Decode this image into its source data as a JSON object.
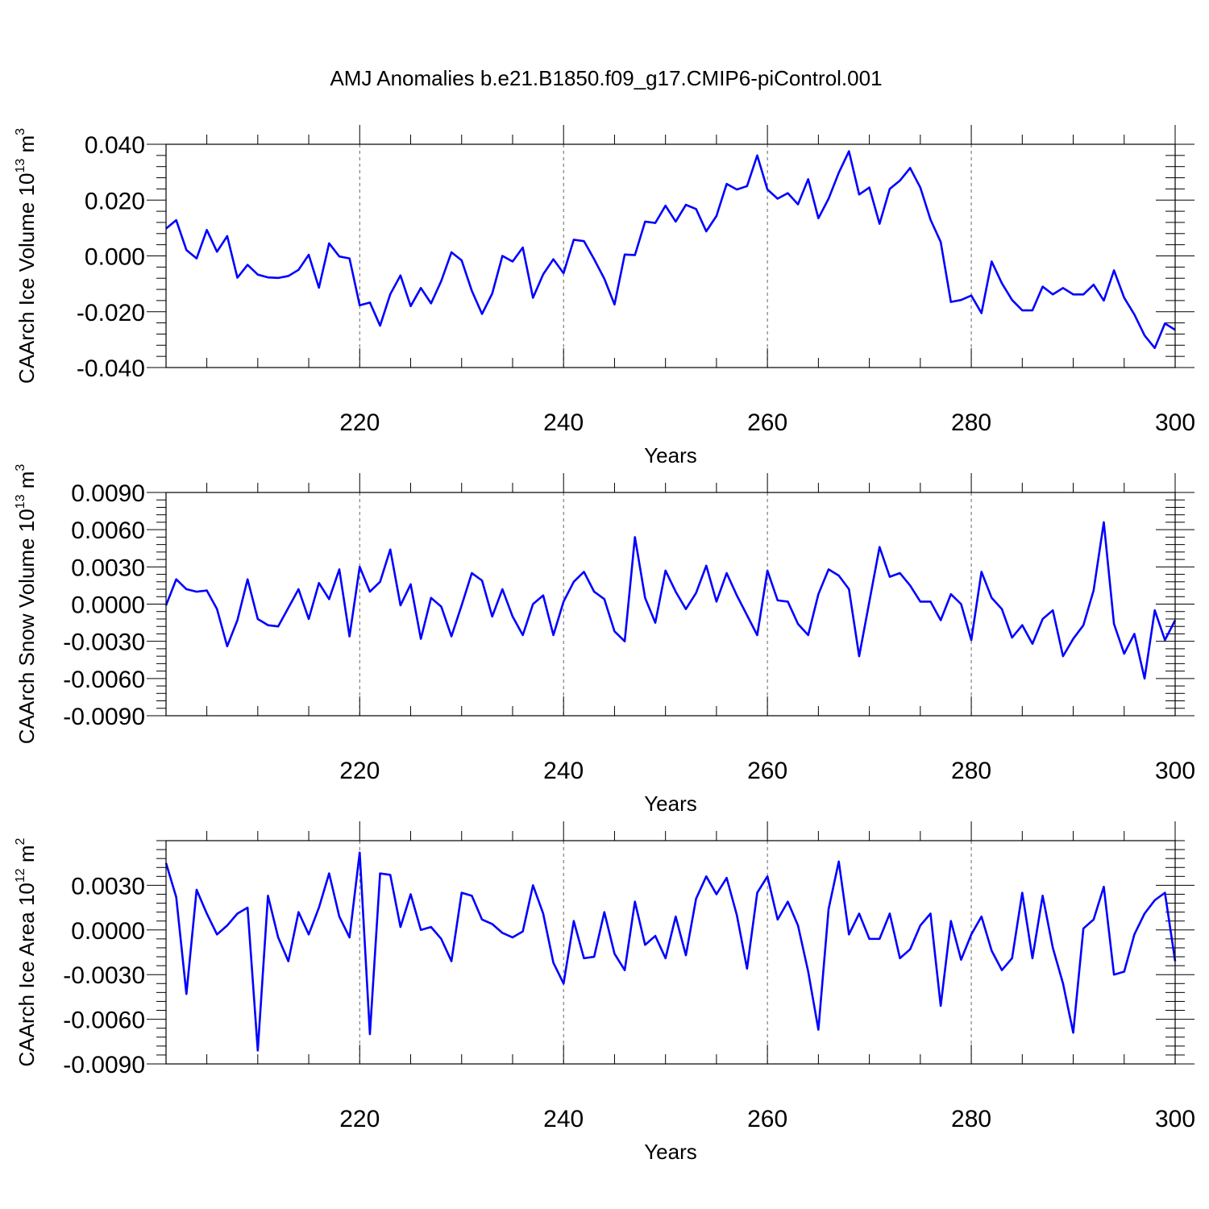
{
  "title": "AMJ Anomalies b.e21.B1850.f09_g17.CMIP6-piControl.001",
  "colors": {
    "series": "#0000ff",
    "frame": "#000000",
    "grid": "#666666"
  },
  "chart_data": [
    {
      "type": "line",
      "ylabel": {
        "text": "CAArch Ice Volume 10",
        "sup": "13",
        "unit": " m",
        "unit_sup": "3"
      },
      "xlabel": "Years",
      "xlim": [
        201,
        300
      ],
      "ylim": [
        -0.04,
        0.04
      ],
      "xticks": [
        220,
        240,
        260,
        280,
        300
      ],
      "xtick_labels": [
        "220",
        "240",
        "260",
        "280",
        "300"
      ],
      "yticks": [
        -0.04,
        -0.02,
        0.0,
        0.02,
        0.04
      ],
      "ytick_labels": [
        "-0.040",
        "-0.020",
        "0.000",
        "0.020",
        "0.040"
      ],
      "grid_x": [
        220,
        240,
        260,
        280
      ],
      "series": [
        {
          "x_start": 201,
          "values": [
            0.0098,
            0.0128,
            0.0021,
            -0.0009,
            0.0093,
            0.0015,
            0.0071,
            -0.0078,
            -0.0032,
            -0.0067,
            -0.0077,
            -0.0079,
            -0.0072,
            -0.005,
            0.0004,
            -0.0114,
            0.0045,
            -0.0002,
            -0.0009,
            -0.0177,
            -0.0167,
            -0.025,
            -0.0137,
            -0.007,
            -0.018,
            -0.0115,
            -0.017,
            -0.009,
            0.0013,
            -0.0016,
            -0.0125,
            -0.0208,
            -0.0135,
            0.0,
            -0.002,
            0.003,
            -0.015,
            -0.0066,
            -0.0012,
            -0.0062,
            0.0058,
            0.0053,
            -0.0012,
            -0.0082,
            -0.0174,
            0.0005,
            0.0003,
            0.0123,
            0.0118,
            0.018,
            0.0123,
            0.0183,
            0.0168,
            0.0088,
            0.0143,
            0.0258,
            0.0238,
            0.025,
            0.036,
            0.0238,
            0.0205,
            0.0225,
            0.0185,
            0.0275,
            0.0135,
            0.0205,
            0.0298,
            0.0375,
            0.022,
            0.0245,
            0.0115,
            0.024,
            0.027,
            0.0315,
            0.0245,
            0.013,
            0.005,
            -0.0165,
            -0.0158,
            -0.0142,
            -0.0205,
            -0.002,
            -0.0098,
            -0.0158,
            -0.0195,
            -0.0195,
            -0.011,
            -0.0138,
            -0.0115,
            -0.0138,
            -0.0138,
            -0.0103,
            -0.016,
            -0.0052,
            -0.015,
            -0.021,
            -0.0285,
            -0.033,
            -0.0242,
            -0.0265
          ]
        }
      ]
    },
    {
      "type": "line",
      "ylabel": {
        "text": "CAArch Snow Volume 10",
        "sup": "13",
        "unit": " m",
        "unit_sup": "3"
      },
      "xlabel": "Years",
      "xlim": [
        201,
        300
      ],
      "ylim": [
        -0.009,
        0.009
      ],
      "xticks": [
        220,
        240,
        260,
        280,
        300
      ],
      "xtick_labels": [
        "220",
        "240",
        "260",
        "280",
        "300"
      ],
      "yticks": [
        -0.009,
        -0.006,
        -0.003,
        0.0,
        0.003,
        0.006,
        0.009
      ],
      "ytick_labels": [
        "-0.0090",
        "-0.0060",
        "-0.0030",
        "0.0000",
        "0.0030",
        "0.0060",
        "0.0090"
      ],
      "grid_x": [
        220,
        240,
        260,
        280
      ],
      "series": [
        {
          "x_start": 201,
          "values": [
            -0.0001,
            0.002,
            0.0012,
            0.001,
            0.0011,
            -0.0004,
            -0.0034,
            -0.0013,
            0.002,
            -0.0012,
            -0.0017,
            -0.0018,
            -0.0003,
            0.0012,
            -0.0012,
            0.0017,
            0.0004,
            0.0028,
            -0.0026,
            0.003,
            0.001,
            0.0018,
            0.0044,
            -0.0001,
            0.0016,
            -0.0028,
            0.0005,
            -0.0002,
            -0.0026,
            -0.0001,
            0.0025,
            0.0019,
            -0.001,
            0.0012,
            -0.001,
            -0.0025,
            0.0,
            0.0007,
            -0.0025,
            0.0002,
            0.0018,
            0.0026,
            0.001,
            0.0004,
            -0.0022,
            -0.003,
            0.0054,
            0.0005,
            -0.0015,
            0.0027,
            0.001,
            -0.0004,
            0.0009,
            0.0031,
            0.0002,
            0.0025,
            0.0007,
            -0.0009,
            -0.0025,
            0.0027,
            0.0003,
            0.0002,
            -0.0016,
            -0.0025,
            0.0008,
            0.0028,
            0.0023,
            0.0012,
            -0.0042,
            0.0002,
            0.0046,
            0.0022,
            0.0025,
            0.0015,
            0.0002,
            0.0002,
            -0.0013,
            0.0008,
            0.0,
            -0.0029,
            0.0026,
            0.0005,
            -0.0004,
            -0.0027,
            -0.0017,
            -0.0032,
            -0.0012,
            -0.0005,
            -0.0042,
            -0.0028,
            -0.0017,
            0.0011,
            0.0066,
            -0.0016,
            -0.004,
            -0.0024,
            -0.006,
            -0.0005,
            -0.0029,
            -0.0013
          ]
        }
      ]
    },
    {
      "type": "line",
      "ylabel": {
        "text": "CAArch Ice Area 10",
        "sup": "12",
        "unit": " m",
        "unit_sup": "2"
      },
      "xlabel": "Years",
      "xlim": [
        201,
        300
      ],
      "ylim": [
        -0.009,
        0.006
      ],
      "xticks": [
        220,
        240,
        260,
        280,
        300
      ],
      "xtick_labels": [
        "220",
        "240",
        "260",
        "280",
        "300"
      ],
      "yticks": [
        -0.009,
        -0.006,
        -0.003,
        0.0,
        0.003
      ],
      "ytick_labels": [
        "-0.0090",
        "-0.0060",
        "-0.0030",
        "0.0000",
        "0.0030"
      ],
      "grid_x": [
        220,
        240,
        260,
        280
      ],
      "series": [
        {
          "x_start": 201,
          "values": [
            0.0045,
            0.0022,
            -0.0043,
            0.0027,
            0.0011,
            -0.0003,
            0.0003,
            0.0011,
            0.0015,
            -0.0081,
            0.0023,
            -0.0005,
            -0.0021,
            0.0012,
            -0.0003,
            0.0015,
            0.0038,
            0.0009,
            -0.0005,
            0.0052,
            -0.007,
            0.0038,
            0.0037,
            0.0002,
            0.0024,
            0.0,
            0.0002,
            -0.0006,
            -0.0021,
            0.0025,
            0.0023,
            0.0007,
            0.0004,
            -0.0002,
            -0.0005,
            -0.0001,
            0.003,
            0.0011,
            -0.0022,
            -0.0036,
            0.0006,
            -0.0019,
            -0.0018,
            0.0012,
            -0.0016,
            -0.0027,
            0.0019,
            -0.001,
            -0.0004,
            -0.0019,
            0.0009,
            -0.0017,
            0.0021,
            0.0036,
            0.0024,
            0.0035,
            0.001,
            -0.0026,
            0.0025,
            0.0036,
            0.0007,
            0.0019,
            0.0003,
            -0.0028,
            -0.0067,
            0.0014,
            0.0046,
            -0.0003,
            0.0011,
            -0.0006,
            -0.0006,
            0.0011,
            -0.0019,
            -0.0013,
            0.0003,
            0.0011,
            -0.0051,
            0.0006,
            -0.002,
            -0.0003,
            0.0009,
            -0.0014,
            -0.0027,
            -0.0019,
            0.0025,
            -0.0019,
            0.0023,
            -0.0012,
            -0.0036,
            -0.0069,
            0.0001,
            0.0007,
            0.0029,
            -0.003,
            -0.0028,
            -0.0003,
            0.0011,
            0.002,
            0.0025,
            -0.0021
          ]
        }
      ]
    }
  ]
}
